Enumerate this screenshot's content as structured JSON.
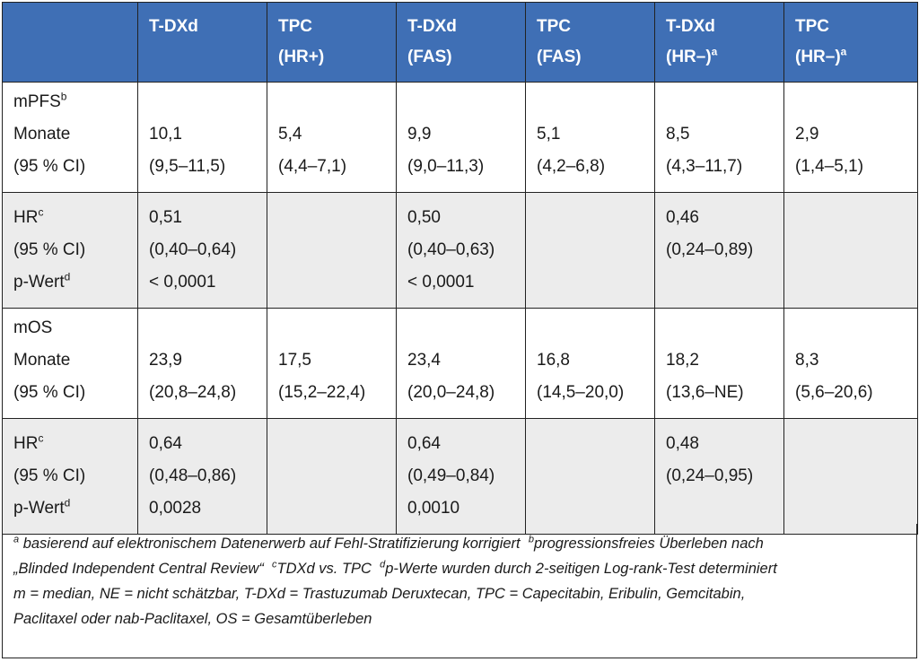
{
  "header": [
    {
      "line1": "",
      "line2": "",
      "sup": ""
    },
    {
      "line1": "T-DXd",
      "line2": "",
      "sup": ""
    },
    {
      "line1": "TPC",
      "line2": "(HR+)",
      "sup": ""
    },
    {
      "line1": "T-DXd",
      "line2": "(FAS)",
      "sup": ""
    },
    {
      "line1": "TPC",
      "line2": "(FAS)",
      "sup": ""
    },
    {
      "line1": "T-DXd",
      "line2": "(HR–)",
      "sup": "a"
    },
    {
      "line1": "TPC",
      "line2": "(HR–)",
      "sup": "a"
    }
  ],
  "rows": [
    {
      "label": [
        {
          "text": "mPFS",
          "sup": "b"
        },
        {
          "text": "Monate",
          "sup": ""
        },
        {
          "text": "(95 % CI)",
          "sup": ""
        }
      ],
      "cells": [
        [
          "10,1",
          "(9,5–11,5)"
        ],
        [
          "5,4",
          "(4,4–7,1)"
        ],
        [
          "9,9",
          "(9,0–11,3)"
        ],
        [
          "5,1",
          "(4,2–6,8)"
        ],
        [
          "8,5",
          "(4,3–11,7)"
        ],
        [
          "2,9",
          "(1,4–5,1)"
        ]
      ]
    },
    {
      "label": [
        {
          "text": "HR",
          "sup": "c"
        },
        {
          "text": "(95 % CI)",
          "sup": ""
        },
        {
          "text": "p-Wert",
          "sup": "d"
        }
      ],
      "cells": [
        [
          "0,51",
          "(0,40–0,64)",
          "< 0,0001"
        ],
        [],
        [
          "0,50",
          "(0,40–0,63)",
          "< 0,0001"
        ],
        [],
        [
          "0,46",
          "(0,24–0,89)"
        ],
        []
      ]
    },
    {
      "label": [
        {
          "text": "mOS",
          "sup": ""
        },
        {
          "text": "Monate",
          "sup": ""
        },
        {
          "text": "(95 % CI)",
          "sup": ""
        }
      ],
      "cells": [
        [
          "23,9",
          "(20,8–24,8)"
        ],
        [
          "17,5",
          "(15,2–22,4)"
        ],
        [
          "23,4",
          "(20,0–24,8)"
        ],
        [
          "16,8",
          "(14,5–20,0)"
        ],
        [
          "18,2",
          "(13,6–NE)"
        ],
        [
          "8,3",
          "(5,6–20,6)"
        ]
      ]
    },
    {
      "label": [
        {
          "text": "HR",
          "sup": "c"
        },
        {
          "text": "(95 % CI)",
          "sup": ""
        },
        {
          "text": "p-Wert",
          "sup": "d"
        }
      ],
      "cells": [
        [
          "0,64",
          "(0,48–0,86)",
          "0,0028"
        ],
        [],
        [
          "0,64",
          "(0,49–0,84)",
          "0,0010"
        ],
        [],
        [
          "0,48",
          "(0,24–0,95)"
        ],
        []
      ]
    }
  ],
  "footnote": {
    "line1": [
      {
        "sup": "a",
        "text": " basierend auf elektronischem Datenerwerb auf Fehl-Stratifizierung korrigiert  "
      },
      {
        "sup": "b",
        "text": "progressionsfreies Überleben nach"
      }
    ],
    "line2": [
      {
        "sup": "",
        "text": "„Blinded Independent Central Review“  "
      },
      {
        "sup": "c",
        "text": "TDXd vs. TPC  "
      },
      {
        "sup": "d",
        "text": "p-Werte wurden durch 2-seitigen Log-rank-Test determiniert"
      }
    ],
    "line3": "m = median, NE = nicht schätzbar, T-DXd = Trastuzumab Deruxtecan, TPC = Capecitabin, Eribulin, Gemcitabin,",
    "line4": "Paclitaxel oder nab-Paclitaxel, OS = Gesamtüberleben"
  },
  "colors": {
    "header_bg": "#3f6fb5",
    "header_text": "#ffffff",
    "shaded_row": "#ececec",
    "border": "#222222"
  }
}
